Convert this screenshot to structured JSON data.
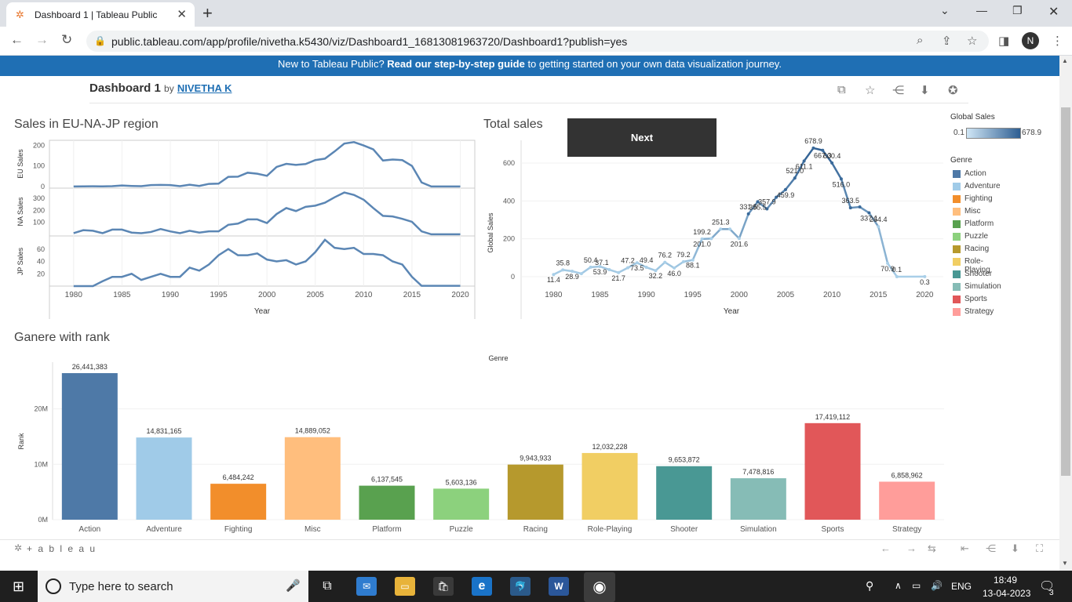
{
  "browser": {
    "tab_title": "Dashboard 1 | Tableau Public",
    "url": "public.tableau.com/app/profile/nivetha.k5430/viz/Dashboard1_16813081963720/Dashboard1?publish=yes",
    "profile_initial": "N"
  },
  "banner": {
    "prefix": "New to Tableau Public? ",
    "link": "Read our step-by-step guide",
    "suffix": " to getting started on your own data visualization journey."
  },
  "dashboard": {
    "title": "Dashboard 1",
    "by": "by",
    "author": "NIVETHA K"
  },
  "next_button": "Next",
  "colors": {
    "Action": "#4e79a7",
    "Adventure": "#a0cbe8",
    "Fighting": "#f28e2b",
    "Misc": "#ffbe7d",
    "Platform": "#59a14f",
    "Puzzle": "#8cd17d",
    "Racing": "#b6992d",
    "Role-Playing": "#f1ce63",
    "Shooter": "#499894",
    "Simulation": "#86bcb6",
    "Sports": "#e15759",
    "Strategy": "#ff9d9a",
    "line_dark": "#3a6a9a",
    "line_light": "#a9cfe8"
  },
  "legend": {
    "gradient_title": "Global Sales",
    "gradient_min": "0.1",
    "gradient_max": "678.9",
    "genre_title": "Genre",
    "genres": [
      "Action",
      "Adventure",
      "Fighting",
      "Misc",
      "Platform",
      "Puzzle",
      "Racing",
      "Role-Playing",
      "Shooter",
      "Simulation",
      "Sports",
      "Strategy"
    ]
  },
  "chart_data": [
    {
      "type": "line",
      "title": "Sales in EU-NA-JP region",
      "xlabel": "Year",
      "x": [
        1980,
        1981,
        1982,
        1983,
        1984,
        1985,
        1986,
        1987,
        1988,
        1989,
        1990,
        1991,
        1992,
        1993,
        1994,
        1995,
        1996,
        1997,
        1998,
        1999,
        2000,
        2001,
        2002,
        2003,
        2004,
        2005,
        2006,
        2007,
        2008,
        2009,
        2010,
        2011,
        2012,
        2013,
        2014,
        2015,
        2016,
        2017,
        2020
      ],
      "x_ticks": [
        "1980",
        "1985",
        "1990",
        "1995",
        "2000",
        "2005",
        "2010",
        "2015",
        "2020"
      ],
      "panels": [
        {
          "name": "EU Sales",
          "ylim": [
            0,
            220
          ],
          "y_ticks": [
            "200",
            "100",
            "0"
          ],
          "values": [
            0.5,
            1,
            1.5,
            1,
            2,
            5,
            3,
            2,
            7,
            8,
            7,
            2,
            9,
            3,
            13,
            14,
            47,
            48,
            67,
            62,
            52,
            95,
            110,
            105,
            109,
            128,
            135,
            170,
            208,
            215,
            199,
            180,
            126,
            131,
            128,
            100,
            20,
            0.5,
            0.5
          ]
        },
        {
          "name": "NA Sales",
          "ylim": [
            0,
            380
          ],
          "y_ticks": [
            "300",
            "200",
            "100"
          ],
          "values": [
            10,
            35,
            30,
            10,
            40,
            40,
            15,
            10,
            20,
            45,
            25,
            10,
            30,
            15,
            25,
            25,
            80,
            90,
            125,
            125,
            95,
            170,
            220,
            195,
            230,
            240,
            265,
            310,
            350,
            330,
            290,
            220,
            155,
            150,
            130,
            105,
            25,
            0.5,
            0.5
          ]
        },
        {
          "name": "JP Sales",
          "ylim": [
            0,
            80
          ],
          "y_ticks": [
            "60",
            "40",
            "20"
          ],
          "values": [
            0,
            0,
            0,
            8,
            15,
            15,
            20,
            10,
            15,
            20,
            15,
            15,
            30,
            25,
            35,
            50,
            60,
            50,
            50,
            53,
            43,
            40,
            42,
            35,
            40,
            55,
            75,
            62,
            60,
            62,
            52,
            52,
            50,
            40,
            35,
            15,
            0.5,
            0.5,
            0.5
          ]
        }
      ]
    },
    {
      "type": "line",
      "title": "Total sales",
      "xlabel": "Year",
      "ylabel": "Global Sales",
      "ylim": [
        0,
        720
      ],
      "y_ticks": [
        0,
        200,
        400,
        600
      ],
      "x_ticks": [
        "1980",
        "1985",
        "1990",
        "1995",
        "2000",
        "2005",
        "2010",
        "2015",
        "2020"
      ],
      "x": [
        1980,
        1981,
        1982,
        1983,
        1984,
        1985,
        1986,
        1987,
        1988,
        1989,
        1990,
        1991,
        1992,
        1993,
        1994,
        1995,
        1996,
        1997,
        1998,
        1999,
        2000,
        2001,
        2002,
        2003,
        2004,
        2005,
        2006,
        2007,
        2008,
        2009,
        2010,
        2011,
        2012,
        2013,
        2014,
        2015,
        2016,
        2017,
        2020
      ],
      "values": [
        11.4,
        35.8,
        28.9,
        16.2,
        50.4,
        53.9,
        37.1,
        21.7,
        47.2,
        73.5,
        49.4,
        32.2,
        76.2,
        46.0,
        79.2,
        88.1,
        199.2,
        201.0,
        251.3,
        251.3,
        201.6,
        331.5,
        395.5,
        357.9,
        419.3,
        459.9,
        521.0,
        611.1,
        678.9,
        667.3,
        600.4,
        516.0,
        363.5,
        368.1,
        337.1,
        264.4,
        70.9,
        0.1,
        0.3
      ],
      "labels": [
        {
          "x": 1980,
          "y": 11.4,
          "t": "11.4"
        },
        {
          "x": 1981,
          "y": 35.8,
          "t": "35.8"
        },
        {
          "x": 1982,
          "y": 28.9,
          "t": "28.9"
        },
        {
          "x": 1984,
          "y": 50.4,
          "t": "50.4"
        },
        {
          "x": 1985,
          "y": 53.9,
          "t": "53.9"
        },
        {
          "x": 1985.2,
          "y": 37.1,
          "t": "37.1"
        },
        {
          "x": 1987,
          "y": 21.7,
          "t": "21.7"
        },
        {
          "x": 1988,
          "y": 47.2,
          "t": "47.2"
        },
        {
          "x": 1989,
          "y": 73.5,
          "t": "73.5"
        },
        {
          "x": 1990,
          "y": 49.4,
          "t": "49.4"
        },
        {
          "x": 1991,
          "y": 32.2,
          "t": "32.2"
        },
        {
          "x": 1992,
          "y": 76.2,
          "t": "76.2"
        },
        {
          "x": 1993,
          "y": 46.0,
          "t": "46.0"
        },
        {
          "x": 1994,
          "y": 79.2,
          "t": "79.2"
        },
        {
          "x": 1995,
          "y": 88.1,
          "t": "88.1"
        },
        {
          "x": 1996,
          "y": 199.2,
          "t": "199.2"
        },
        {
          "x": 1996,
          "y": 201.0,
          "t": "201.0"
        },
        {
          "x": 1998,
          "y": 251.3,
          "t": "251.3"
        },
        {
          "x": 2000,
          "y": 201.6,
          "t": "201.6"
        },
        {
          "x": 2001,
          "y": 331.5,
          "t": "331.5"
        },
        {
          "x": 2002,
          "y": 395.5,
          "t": "395.5"
        },
        {
          "x": 2003,
          "y": 357.9,
          "t": "357.9"
        },
        {
          "x": 2005,
          "y": 459.9,
          "t": "459.9"
        },
        {
          "x": 2006,
          "y": 521.0,
          "t": "521.0"
        },
        {
          "x": 2007,
          "y": 611.1,
          "t": "611.1"
        },
        {
          "x": 2008,
          "y": 678.9,
          "t": "678.9"
        },
        {
          "x": 2009,
          "y": 667.3,
          "t": "667.3"
        },
        {
          "x": 2010,
          "y": 600.4,
          "t": "600.4"
        },
        {
          "x": 2011,
          "y": 516.0,
          "t": "516.0"
        },
        {
          "x": 2012,
          "y": 363.5,
          "t": "363.5"
        },
        {
          "x": 2014,
          "y": 337.1,
          "t": "337.1"
        },
        {
          "x": 2015,
          "y": 264.4,
          "t": "264.4"
        },
        {
          "x": 2016,
          "y": 70.9,
          "t": "70.9"
        },
        {
          "x": 2017,
          "y": 0.1,
          "t": "0.1"
        },
        {
          "x": 2020,
          "y": 0.3,
          "t": "0.3"
        }
      ]
    },
    {
      "type": "bar",
      "title": "Ganere with rank",
      "header": "Genre",
      "ylabel": "Rank",
      "ylim": [
        0,
        28000000
      ],
      "y_ticks": [
        {
          "v": 0,
          "t": "0M"
        },
        {
          "v": 10000000,
          "t": "10M"
        },
        {
          "v": 20000000,
          "t": "20M"
        }
      ],
      "categories": [
        "Action",
        "Adventure",
        "Fighting",
        "Misc",
        "Platform",
        "Puzzle",
        "Racing",
        "Role-Playing",
        "Shooter",
        "Simulation",
        "Sports",
        "Strategy"
      ],
      "values": [
        26441383,
        14831165,
        6484242,
        14889052,
        6137545,
        5603136,
        9943933,
        12032228,
        9653872,
        7478816,
        17419112,
        6858962
      ],
      "value_labels": [
        "26,441,383",
        "14,831,165",
        "6,484,242",
        "14,889,052",
        "6,137,545",
        "5,603,136",
        "9,943,933",
        "12,032,228",
        "9,653,872",
        "7,478,816",
        "17,419,112",
        "6,858,962"
      ]
    }
  ],
  "footer": {
    "logo": "+ a b l e a u"
  },
  "taskbar": {
    "search_placeholder": "Type here to search",
    "lang": "ENG",
    "time": "18:49",
    "date": "13-04-2023",
    "notif_count": "3"
  }
}
